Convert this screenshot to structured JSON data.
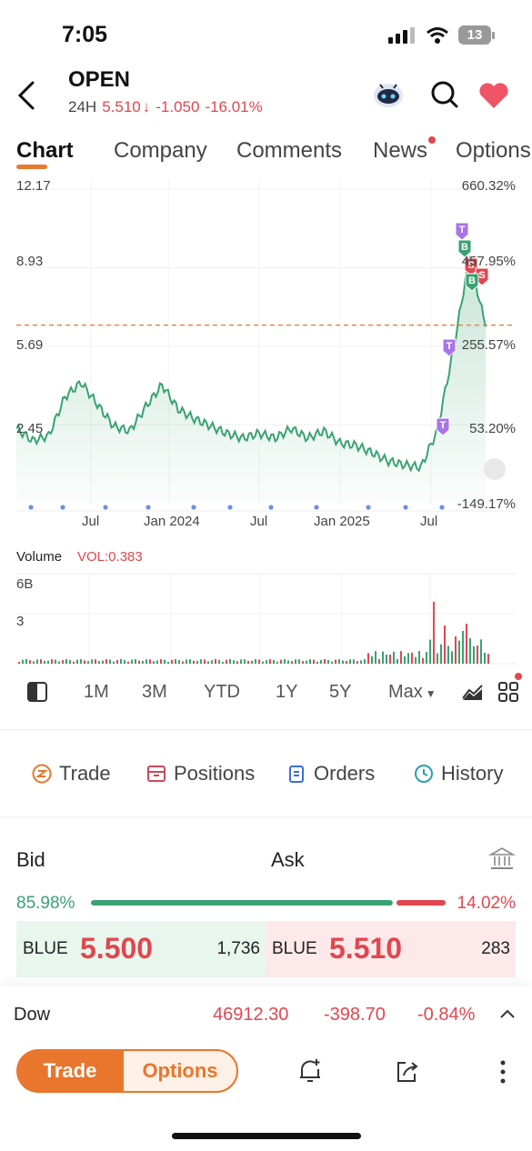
{
  "status": {
    "time": "7:05",
    "battery": "13"
  },
  "header": {
    "symbol": "OPEN",
    "session": "24H",
    "price": "5.510",
    "change": "-1.050",
    "change_pct": "-16.01%"
  },
  "tabs": [
    "Chart",
    "Company",
    "Comments",
    "News",
    "Options"
  ],
  "chart": {
    "y_left": [
      "12.17",
      "8.93",
      "5.69",
      "2.45"
    ],
    "y_right": [
      "660.32%",
      "457.95%",
      "255.57%",
      "53.20%",
      "-149.17%"
    ],
    "x_labels": [
      "Jul",
      "Jan 2024",
      "Jul",
      "Jan 2025",
      "Jul"
    ],
    "volume_title": "Volume",
    "volume_value": "VOL:0.383",
    "volume_axis": [
      "6B",
      "3"
    ],
    "markers": [
      "T",
      "B",
      "S",
      "S",
      "B",
      "T",
      "T"
    ],
    "colors": {
      "line": "#3aa272",
      "dashed": "#e8762c",
      "up": "#3aa272",
      "down": "#e0474f"
    }
  },
  "chart_data": {
    "type": "line",
    "x": [
      "2023-05",
      "2023-06",
      "2023-07",
      "2023-08",
      "2023-09",
      "2023-10",
      "2023-11",
      "2023-12",
      "2024-01",
      "2024-02",
      "2024-03",
      "2024-04",
      "2024-05",
      "2024-06",
      "2024-07",
      "2024-08",
      "2024-09",
      "2024-10",
      "2024-11",
      "2024-12",
      "2025-01",
      "2025-02",
      "2025-03",
      "2025-04",
      "2025-05",
      "2025-06",
      "2025-07",
      "2025-08",
      "2025-09",
      "2025-10"
    ],
    "values": [
      2.3,
      1.8,
      2.0,
      3.6,
      4.2,
      3.3,
      2.4,
      2.2,
      3.2,
      4.1,
      3.1,
      2.7,
      2.4,
      2.1,
      1.9,
      2.1,
      1.9,
      2.3,
      1.9,
      2.2,
      1.7,
      1.6,
      1.3,
      0.95,
      0.8,
      0.7,
      2.2,
      5.5,
      9.4,
      6.5
    ],
    "ylim": [
      -0.8,
      12.17
    ],
    "y_ticks": [
      12.17,
      8.93,
      5.69,
      2.45
    ],
    "reference_price": 6.56
  },
  "ranges": [
    "1M",
    "3M",
    "YTD",
    "1Y",
    "5Y",
    "Max"
  ],
  "actions": [
    "Trade",
    "Positions",
    "Orders",
    "History"
  ],
  "orderbook": {
    "bid_label": "Bid",
    "ask_label": "Ask",
    "bid_pct": "85.98%",
    "ask_pct": "14.02%",
    "bid_fraction": 0.8598,
    "bid_exchange": "BLUE",
    "bid_price": "5.500",
    "bid_size": "1,736",
    "ask_exchange": "BLUE",
    "ask_price": "5.510",
    "ask_size": "283"
  },
  "index": {
    "name": "Dow",
    "value": "46912.30",
    "change": "-398.70",
    "change_pct": "-0.84%"
  },
  "bottom": {
    "trade": "Trade",
    "options": "Options"
  }
}
